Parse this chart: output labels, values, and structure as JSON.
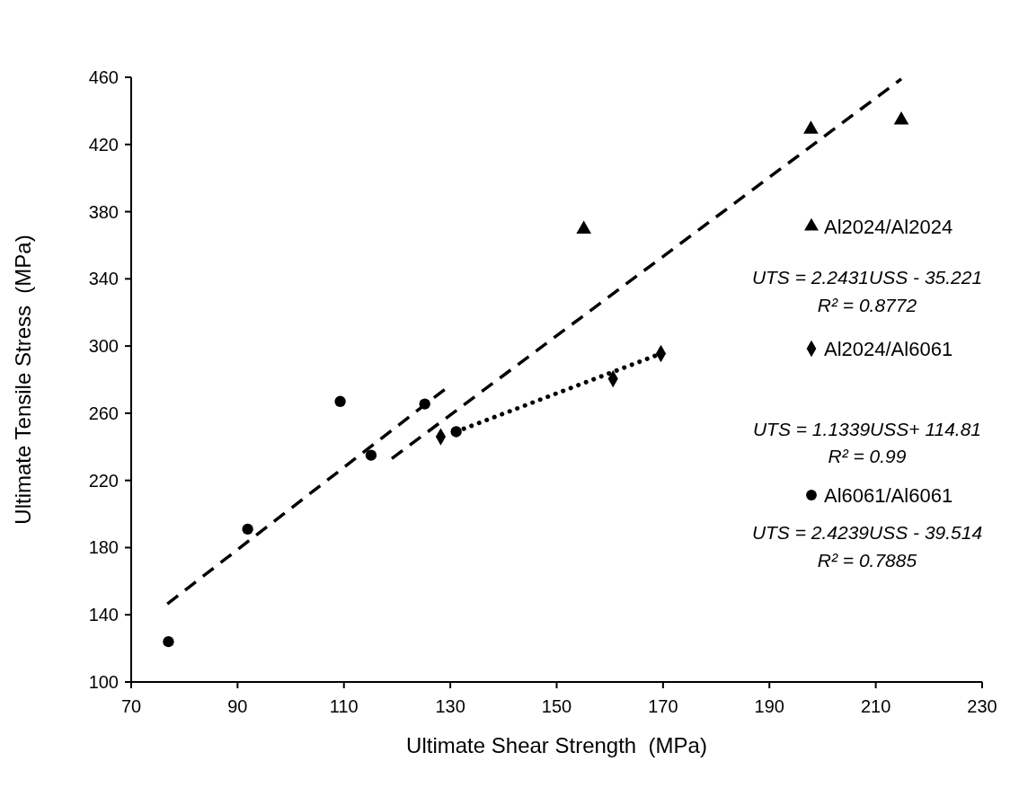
{
  "chart_data": {
    "type": "scatter",
    "xlabel": "Ultimate Shear Strength  (MPa)",
    "ylabel": "Ultimate Tensile Stress  (MPa)",
    "xlim": [
      70,
      230
    ],
    "xticks": [
      70,
      90,
      110,
      130,
      150,
      170,
      190,
      210,
      230
    ],
    "ylim": [
      100,
      460
    ],
    "yticks": [
      100,
      140,
      180,
      220,
      260,
      300,
      340,
      380,
      420,
      460
    ],
    "grid": false,
    "legend": "right",
    "series": [
      {
        "name": "Al2024/Al2024",
        "marker": "triangle",
        "color": "#000000",
        "x": [
          155.1,
          197.8,
          214.8
        ],
        "values": [
          369.5,
          429,
          434.5
        ]
      },
      {
        "name": "Al2024/Al6061",
        "marker": "diamond",
        "color": "#000000",
        "x": [
          128.2,
          160.6,
          169.6
        ],
        "values": [
          246,
          280.5,
          295.5
        ]
      },
      {
        "name": "Al6061/Al6061",
        "marker": "circle",
        "color": "#000000",
        "x": [
          77,
          91.9,
          109.3,
          115.1,
          125.2,
          131.1
        ],
        "values": [
          124,
          191,
          267,
          235,
          265.5,
          249
        ]
      },
      {
        "type": "line",
        "marker": "none",
        "line_style": "dashed",
        "color": "#000000",
        "x": [
          119,
          214.8
        ],
        "values": [
          233,
          459
        ]
      },
      {
        "type": "line",
        "marker": "none",
        "line_style": "dotted",
        "color": "#000000",
        "x": [
          131.1,
          169.6
        ],
        "values": [
          249,
          295.5
        ]
      },
      {
        "type": "line",
        "marker": "none",
        "line_style": "dashed",
        "color": "#000000",
        "x": [
          76.8,
          129.7
        ],
        "values": [
          146.5,
          276
        ]
      }
    ],
    "annotations": [
      "UTS = 2.2431USS - 35.221",
      "R² = 0.8772",
      "UTS = 1.1339USS+ 114.81",
      "R² = 0.99",
      "UTS = 2.4239USS - 39.514",
      "R² = 0.7885"
    ]
  }
}
